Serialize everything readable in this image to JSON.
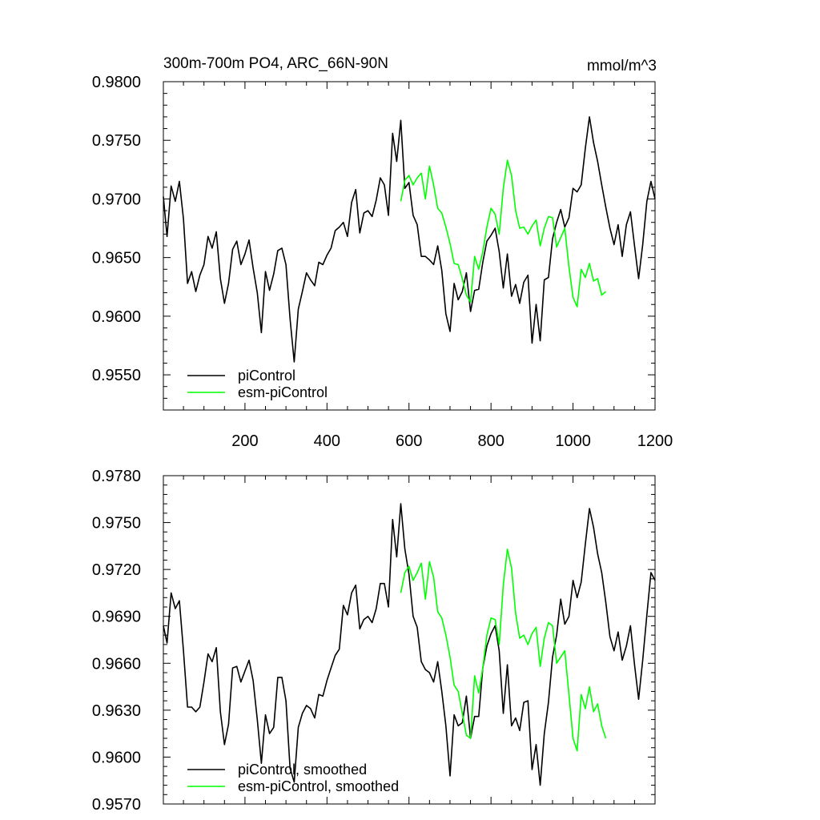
{
  "chart_data": [
    {
      "type": "line",
      "title": "300m-700m PO4, ARC_66N-90N",
      "units": "mmol/m^3",
      "xlabel": "",
      "ylabel": "",
      "xlim": [
        1,
        1200
      ],
      "ylim": [
        0.952,
        0.98
      ],
      "x_ticks": [
        200,
        400,
        600,
        800,
        1000,
        1200
      ],
      "x_tick_labels": [
        "200",
        "400",
        "600",
        "800",
        "1000",
        "1200"
      ],
      "y_ticks": [
        0.955,
        0.96,
        0.965,
        0.97,
        0.975,
        0.98
      ],
      "y_tick_labels": [
        "0.9550",
        "0.9600",
        "0.9650",
        "0.9700",
        "0.9750",
        "0.9800"
      ],
      "grid": false,
      "legend_position": "bottom-left",
      "series": [
        {
          "name": "piControl",
          "color": "#000000",
          "x": [
            1,
            10,
            20,
            30,
            40,
            50,
            60,
            70,
            80,
            90,
            100,
            110,
            120,
            130,
            140,
            150,
            160,
            170,
            180,
            190,
            200,
            210,
            220,
            230,
            240,
            250,
            260,
            270,
            280,
            290,
            300,
            310,
            320,
            330,
            340,
            350,
            360,
            370,
            380,
            390,
            400,
            410,
            420,
            430,
            440,
            450,
            460,
            470,
            480,
            490,
            500,
            510,
            520,
            530,
            540,
            550,
            560,
            570,
            580,
            590,
            600,
            610,
            620,
            630,
            640,
            650,
            660,
            670,
            680,
            690,
            700,
            710,
            720,
            730,
            740,
            750,
            760,
            770,
            780,
            790,
            800,
            810,
            820,
            830,
            840,
            850,
            860,
            870,
            880,
            890,
            900,
            910,
            920,
            930,
            940,
            950,
            960,
            970,
            980,
            990,
            1000,
            1010,
            1020,
            1030,
            1040,
            1050,
            1060,
            1070,
            1080,
            1090,
            1100,
            1110,
            1120,
            1130,
            1140,
            1150,
            1160,
            1170,
            1180,
            1190,
            1200
          ],
          "y": [
            0.9702,
            0.9668,
            0.9711,
            0.9698,
            0.9715,
            0.9683,
            0.9628,
            0.9638,
            0.9621,
            0.9635,
            0.9644,
            0.9668,
            0.9658,
            0.9672,
            0.9632,
            0.9611,
            0.9628,
            0.9657,
            0.9664,
            0.9644,
            0.9653,
            0.9665,
            0.9641,
            0.962,
            0.9586,
            0.9638,
            0.9622,
            0.9636,
            0.9656,
            0.9658,
            0.9644,
            0.9598,
            0.9561,
            0.9606,
            0.9621,
            0.9637,
            0.9631,
            0.9626,
            0.9646,
            0.9644,
            0.9652,
            0.9658,
            0.9673,
            0.9676,
            0.968,
            0.9668,
            0.9697,
            0.9708,
            0.9671,
            0.9688,
            0.969,
            0.9685,
            0.9699,
            0.9718,
            0.9712,
            0.9686,
            0.9756,
            0.9732,
            0.9767,
            0.9709,
            0.9714,
            0.9686,
            0.9678,
            0.9651,
            0.9651,
            0.9648,
            0.9644,
            0.966,
            0.9639,
            0.9602,
            0.9587,
            0.9628,
            0.9614,
            0.9621,
            0.9637,
            0.9604,
            0.9622,
            0.9623,
            0.9646,
            0.9664,
            0.9669,
            0.9675,
            0.9655,
            0.9624,
            0.9653,
            0.9617,
            0.9627,
            0.9611,
            0.9629,
            0.9635,
            0.9577,
            0.961,
            0.9579,
            0.9631,
            0.9633,
            0.9666,
            0.968,
            0.9691,
            0.9676,
            0.9684,
            0.9709,
            0.9706,
            0.9712,
            0.9743,
            0.977,
            0.9748,
            0.9732,
            0.9712,
            0.9693,
            0.9675,
            0.9661,
            0.9678,
            0.9651,
            0.9678,
            0.9689,
            0.966,
            0.9632,
            0.9661,
            0.9698,
            0.9715,
            0.97
          ]
        },
        {
          "name": "esm-piControl",
          "color": "#00ff00",
          "x": [
            580,
            590,
            600,
            610,
            620,
            630,
            640,
            650,
            660,
            670,
            680,
            690,
            700,
            710,
            720,
            730,
            740,
            750,
            760,
            770,
            780,
            790,
            800,
            810,
            820,
            830,
            840,
            850,
            860,
            870,
            880,
            890,
            900,
            910,
            920,
            930,
            940,
            950,
            960,
            970,
            980,
            990,
            1000,
            1010,
            1020,
            1030,
            1040,
            1050,
            1060,
            1070,
            1080
          ],
          "y": [
            0.9698,
            0.9716,
            0.972,
            0.9712,
            0.9718,
            0.9722,
            0.97,
            0.9728,
            0.9712,
            0.9692,
            0.9688,
            0.9676,
            0.9662,
            0.9645,
            0.9644,
            0.9632,
            0.9618,
            0.9612,
            0.9651,
            0.964,
            0.9655,
            0.9676,
            0.9692,
            0.9687,
            0.967,
            0.9709,
            0.9733,
            0.972,
            0.969,
            0.9675,
            0.9676,
            0.967,
            0.9677,
            0.9682,
            0.966,
            0.9675,
            0.9685,
            0.9684,
            0.9659,
            0.9667,
            0.9675,
            0.9642,
            0.9616,
            0.9608,
            0.964,
            0.9633,
            0.9645,
            0.963,
            0.9632,
            0.9618,
            0.9621
          ]
        }
      ]
    },
    {
      "type": "line",
      "title": "",
      "xlabel": "",
      "ylabel": "",
      "xlim": [
        1,
        1200
      ],
      "ylim": [
        0.957,
        0.978
      ],
      "y_ticks": [
        0.957,
        0.96,
        0.963,
        0.966,
        0.969,
        0.972,
        0.975,
        0.978
      ],
      "y_tick_labels": [
        "0.9570",
        "0.9600",
        "0.9630",
        "0.9660",
        "0.9690",
        "0.9720",
        "0.9750",
        "0.9780"
      ],
      "grid": false,
      "legend_position": "bottom-left",
      "series": [
        {
          "name": "piControl, smoothed",
          "color": "#000000",
          "x": [
            1,
            10,
            20,
            30,
            40,
            50,
            60,
            70,
            80,
            90,
            100,
            110,
            120,
            130,
            140,
            150,
            160,
            170,
            180,
            190,
            200,
            210,
            220,
            230,
            240,
            250,
            260,
            270,
            280,
            290,
            300,
            310,
            320,
            330,
            340,
            350,
            360,
            370,
            380,
            390,
            400,
            410,
            420,
            430,
            440,
            450,
            460,
            470,
            480,
            490,
            500,
            510,
            520,
            530,
            540,
            550,
            560,
            570,
            580,
            590,
            600,
            610,
            620,
            630,
            640,
            650,
            660,
            670,
            680,
            690,
            700,
            710,
            720,
            730,
            740,
            750,
            760,
            770,
            780,
            790,
            800,
            810,
            820,
            830,
            840,
            850,
            860,
            870,
            880,
            890,
            900,
            910,
            920,
            930,
            940,
            950,
            960,
            970,
            980,
            990,
            1000,
            1010,
            1020,
            1030,
            1040,
            1050,
            1060,
            1070,
            1080,
            1090,
            1100,
            1110,
            1120,
            1130,
            1140,
            1150,
            1160,
            1170,
            1180,
            1190,
            1200
          ],
          "y": [
            0.9684,
            0.9673,
            0.9705,
            0.9695,
            0.97,
            0.9668,
            0.9632,
            0.9632,
            0.9629,
            0.9632,
            0.9648,
            0.9666,
            0.9661,
            0.967,
            0.9629,
            0.9608,
            0.9621,
            0.9657,
            0.9658,
            0.9648,
            0.9655,
            0.9662,
            0.9649,
            0.9624,
            0.9596,
            0.9627,
            0.9615,
            0.9619,
            0.9651,
            0.9651,
            0.9636,
            0.9593,
            0.9584,
            0.9619,
            0.9628,
            0.9633,
            0.9631,
            0.9625,
            0.964,
            0.9639,
            0.9649,
            0.9657,
            0.9665,
            0.9669,
            0.9697,
            0.9691,
            0.9705,
            0.971,
            0.9682,
            0.9688,
            0.969,
            0.9686,
            0.9695,
            0.9711,
            0.9711,
            0.9696,
            0.9752,
            0.9728,
            0.9762,
            0.9733,
            0.9717,
            0.969,
            0.9683,
            0.9661,
            0.9656,
            0.9654,
            0.9648,
            0.9661,
            0.9642,
            0.962,
            0.9588,
            0.9627,
            0.962,
            0.9622,
            0.9639,
            0.9612,
            0.9626,
            0.9626,
            0.9657,
            0.9671,
            0.9679,
            0.9684,
            0.9668,
            0.9628,
            0.9659,
            0.962,
            0.9625,
            0.9617,
            0.9635,
            0.9636,
            0.9592,
            0.9608,
            0.9582,
            0.9615,
            0.9635,
            0.9664,
            0.9678,
            0.9701,
            0.9685,
            0.969,
            0.9713,
            0.9702,
            0.9712,
            0.9736,
            0.9759,
            0.9747,
            0.973,
            0.9718,
            0.9699,
            0.9677,
            0.9668,
            0.968,
            0.9662,
            0.9671,
            0.9684,
            0.9659,
            0.9637,
            0.9662,
            0.9691,
            0.9718,
            0.9713
          ]
        },
        {
          "name": "esm-piControl, smoothed",
          "color": "#00ff00",
          "x": [
            580,
            590,
            600,
            610,
            620,
            630,
            640,
            650,
            660,
            670,
            680,
            690,
            700,
            710,
            720,
            730,
            740,
            750,
            760,
            770,
            780,
            790,
            800,
            810,
            820,
            830,
            840,
            850,
            860,
            870,
            880,
            890,
            900,
            910,
            920,
            930,
            940,
            950,
            960,
            970,
            980,
            990,
            1000,
            1010,
            1020,
            1030,
            1040,
            1050,
            1060,
            1070,
            1080
          ],
          "y": [
            0.9705,
            0.9718,
            0.9722,
            0.9713,
            0.9718,
            0.9724,
            0.9701,
            0.9725,
            0.9715,
            0.9693,
            0.9689,
            0.9678,
            0.9664,
            0.9646,
            0.9642,
            0.9628,
            0.9614,
            0.9612,
            0.9652,
            0.9641,
            0.9657,
            0.9678,
            0.9689,
            0.9688,
            0.9672,
            0.971,
            0.9733,
            0.9721,
            0.9692,
            0.9676,
            0.9678,
            0.9672,
            0.9679,
            0.9683,
            0.9658,
            0.9676,
            0.9686,
            0.9684,
            0.966,
            0.9664,
            0.9668,
            0.964,
            0.9612,
            0.9604,
            0.964,
            0.9631,
            0.9645,
            0.9629,
            0.9634,
            0.962,
            0.9612
          ]
        }
      ]
    }
  ]
}
